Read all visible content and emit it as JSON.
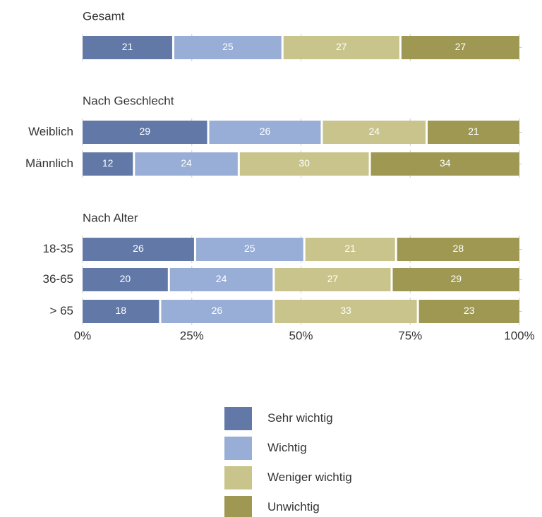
{
  "chart_data": {
    "type": "bar",
    "stacked": true,
    "orientation": "horizontal",
    "series_names": [
      "Sehr wichtig",
      "Wichtig",
      "Weniger wichtig",
      "Unwichtig"
    ],
    "colors": [
      "#6279a7",
      "#99aed6",
      "#c8c48b",
      "#9e9853"
    ],
    "groups": [
      {
        "title": "Gesamt",
        "rows": [
          {
            "label": "",
            "values": [
              21,
              25,
              27,
              27
            ]
          }
        ]
      },
      {
        "title": "Nach Geschlecht",
        "rows": [
          {
            "label": "Weiblich",
            "values": [
              29,
              26,
              24,
              21
            ]
          },
          {
            "label": "Männlich",
            "values": [
              12,
              24,
              30,
              34
            ]
          }
        ]
      },
      {
        "title": "Nach Alter",
        "rows": [
          {
            "label": "18-35",
            "values": [
              26,
              25,
              21,
              28
            ]
          },
          {
            "label": "36-65",
            "values": [
              20,
              24,
              27,
              29
            ]
          },
          {
            "label": "> 65",
            "values": [
              18,
              26,
              33,
              23
            ]
          }
        ]
      }
    ],
    "xticks": [
      "0%",
      "25%",
      "50%",
      "75%",
      "100%"
    ],
    "xlim": [
      0,
      100
    ],
    "legend_position": "bottom",
    "grid": false
  }
}
